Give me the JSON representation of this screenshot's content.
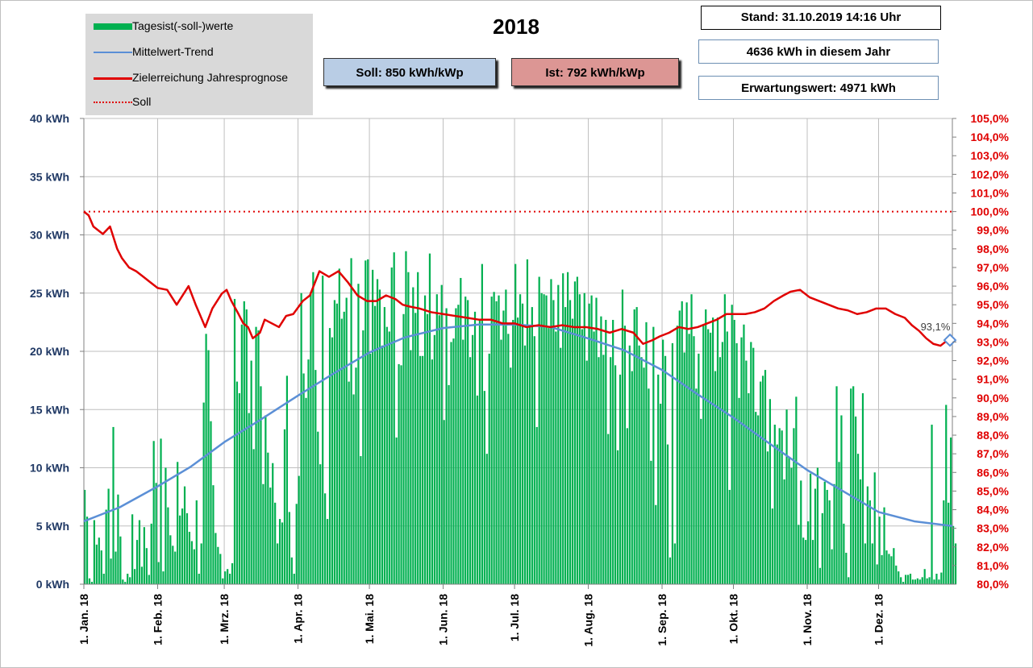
{
  "title": "2018",
  "info": {
    "stand": "Stand:  31.10.2019  14:16  Uhr",
    "jahr": "4636  kWh  in  diesem  Jahr",
    "erwartung": "Erwartungswert:  4971  kWh",
    "soll": "Soll:  850  kWh/kWp",
    "ist": "Ist:  792  kWh/kWp"
  },
  "legend": [
    {
      "label": "Tagesist(-soll-)werte",
      "color": "#00b050",
      "style": "bar"
    },
    {
      "label": "Mittelwert-Trend",
      "color": "#5b8fd6",
      "style": "line"
    },
    {
      "label": "Zielerreichung Jahresprognose",
      "color": "#e00000",
      "style": "line"
    },
    {
      "label": "Soll",
      "color": "#e00000",
      "style": "dotted"
    }
  ],
  "colors": {
    "bars": "#00b050",
    "trend": "#5b8fd6",
    "forecast": "#e00000",
    "soll": "#e00000",
    "left_axis": "#1f3864",
    "right_axis": "#e00000",
    "grid": "#bfbfbf"
  },
  "chart_data": {
    "type": "bar",
    "year": 2018,
    "y_left": {
      "range": [
        0,
        40
      ],
      "ticks": [
        0,
        5,
        10,
        15,
        20,
        25,
        30,
        35,
        40
      ],
      "tick_labels": [
        "0 kWh",
        "5 kWh",
        "10 kWh",
        "15 kWh",
        "20 kWh",
        "25 kWh",
        "30 kWh",
        "35 kWh",
        "40 kWh"
      ]
    },
    "y_right": {
      "range": [
        80,
        105
      ],
      "ticks": [
        80,
        81,
        82,
        83,
        84,
        85,
        86,
        87,
        88,
        89,
        90,
        91,
        92,
        93,
        94,
        95,
        96,
        97,
        98,
        99,
        100,
        101,
        102,
        103,
        104,
        105
      ],
      "tick_labels": [
        "80,0%",
        "81,0%",
        "82,0%",
        "83,0%",
        "84,0%",
        "85,0%",
        "86,0%",
        "87,0%",
        "88,0%",
        "89,0%",
        "90,0%",
        "91,0%",
        "92,0%",
        "93,0%",
        "94,0%",
        "95,0%",
        "96,0%",
        "97,0%",
        "98,0%",
        "99,0%",
        "100,0%",
        "101,0%",
        "102,0%",
        "103,0%",
        "104,0%",
        "105,0%"
      ]
    },
    "x_axis": {
      "range": [
        1,
        366
      ],
      "ticks": [
        1,
        32,
        60,
        91,
        121,
        152,
        182,
        213,
        244,
        274,
        305,
        335
      ],
      "tick_labels": [
        "1. Jan. 18",
        "1. Feb. 18",
        "1. Mrz. 18",
        "1. Apr. 18",
        "1. Mai. 18",
        "1. Jun. 18",
        "1. Jul. 18",
        "1. Aug. 18",
        "1. Sep. 18",
        "1. Okt. 18",
        "1. Nov. 18",
        "1. Dez. 18"
      ]
    },
    "grid": true,
    "legend_position": "top-left",
    "series": [
      {
        "name": "Tagesist(-soll-)werte",
        "type": "bar",
        "axis": "left",
        "x_start": 1,
        "x_step": 1,
        "values": [
          8.1,
          5.8,
          0.5,
          0.2,
          5.5,
          3.4,
          4.0,
          2.9,
          0.9,
          6.4,
          8.2,
          2.2,
          13.5,
          2.8,
          7.7,
          4.1,
          0.4,
          0.2,
          0.9,
          0.6,
          6.0,
          1.3,
          3.8,
          5.5,
          1.5,
          4.9,
          3.1,
          0.8,
          5.2,
          12.3,
          8.7,
          1.9,
          12.5,
          1.1,
          10.0,
          6.6,
          4.2,
          3.3,
          2.8,
          10.5,
          5.9,
          6.5,
          8.4,
          6.1,
          4.5,
          3.7,
          3.0,
          7.2,
          0.9,
          3.5,
          15.6,
          21.5,
          20.1,
          14.0,
          8.5,
          4.4,
          3.2,
          2.6,
          0.5,
          1.1,
          1.3,
          0.9,
          1.8,
          24.5,
          17.4,
          16.4,
          22.3,
          24.3,
          23.6,
          14.7,
          19.2,
          11.6,
          22.1,
          21.8,
          17.0,
          8.6,
          14.5,
          11.3,
          8.3,
          10.4,
          7.0,
          3.5,
          5.6,
          5.3,
          13.3,
          17.9,
          6.2,
          2.3,
          0.9,
          6.9,
          9.3,
          25.0,
          18.1,
          16.0,
          19.3,
          25.1,
          26.8,
          18.4,
          13.1,
          10.3,
          26.5,
          7.8,
          5.6,
          22.0,
          21.2,
          24.4,
          24.1,
          27.1,
          22.8,
          23.4,
          24.6,
          17.4,
          28.0,
          16.3,
          18.6,
          25.8,
          11.0,
          21.8,
          27.8,
          27.9,
          19.8,
          27.0,
          23.9,
          26.2,
          25.3,
          20.5,
          23.8,
          22.1,
          21.7,
          27.2,
          28.5,
          12.6,
          18.9,
          18.8,
          23.2,
          28.6,
          26.8,
          20.1,
          25.5,
          23.3,
          26.8,
          19.6,
          19.6,
          24.8,
          23.2,
          28.4,
          19.3,
          21.4,
          24.9,
          23.1,
          25.7,
          14.1,
          23.7,
          17.1,
          20.8,
          21.1,
          23.7,
          24.0,
          26.3,
          21.0,
          24.7,
          24.4,
          19.5,
          21.4,
          23.4,
          16.2,
          22.7,
          27.5,
          16.6,
          11.2,
          19.8,
          24.7,
          25.1,
          24.3,
          24.8,
          21.0,
          23.5,
          25.3,
          21.5,
          18.6,
          22.7,
          27.5,
          22.9,
          24.9,
          24.1,
          20.5,
          27.9,
          22.2,
          23.8,
          21.3,
          13.5,
          26.4,
          25.0,
          24.9,
          24.8,
          22.0,
          26.2,
          24.4,
          21.7,
          25.7,
          20.3,
          26.7,
          23.8,
          26.8,
          24.4,
          22.8,
          26.0,
          26.4,
          24.9,
          21.9,
          25.0,
          19.2,
          24.1,
          24.8,
          21.7,
          24.6,
          19.5,
          23.0,
          19.7,
          22.7,
          12.9,
          19.5,
          22.7,
          18.8,
          11.5,
          18.0,
          25.3,
          22.2,
          13.4,
          20.5,
          18.3,
          23.6,
          23.8,
          20.5,
          19.5,
          18.6,
          22.5,
          16.8,
          10.6,
          22.1,
          6.8,
          18.0,
          15.5,
          21.0,
          19.6,
          12.0,
          2.3,
          20.7,
          3.5,
          22.2,
          23.5,
          24.3,
          19.9,
          24.2,
          21.5,
          24.9,
          21.3,
          16.8,
          19.8,
          14.2,
          22.2,
          23.6,
          21.9,
          21.6,
          22.9,
          18.3,
          22.9,
          19.5,
          20.8,
          24.9,
          21.7,
          8.1,
          24.0,
          22.7,
          20.7,
          16.0,
          21.2,
          22.3,
          19.2,
          16.4,
          20.8,
          20.3,
          14.8,
          14.5,
          17.4,
          17.9,
          18.4,
          11.4,
          15.9,
          6.5,
          13.7,
          12.0,
          13.4,
          13.2,
          9.0,
          15.0,
          10.9,
          10.0,
          13.4,
          16.1,
          5.1,
          8.9,
          4.0,
          3.8,
          5.4,
          9.5,
          3.8,
          8.2,
          10.0,
          1.4,
          6.1,
          8.8,
          8.1,
          7.2,
          3.0,
          8.6,
          17.0,
          10.5,
          14.5,
          5.2,
          2.7,
          0.6,
          16.8,
          17.0,
          14.4,
          11.2,
          9.0,
          16.4,
          3.5,
          8.4,
          7.2,
          3.5,
          9.6,
          1.7,
          5.8,
          2.5,
          6.6,
          2.9,
          2.6,
          2.4,
          3.1,
          1.6,
          1.1,
          0.6,
          0.2,
          0.8,
          0.8,
          0.9,
          0.4,
          0.4,
          0.5,
          0.4,
          0.6,
          1.3,
          0.5,
          0.6,
          13.7,
          0.4,
          0.9,
          0.4,
          1.0,
          7.2,
          15.4,
          7.0,
          12.6,
          5.0,
          3.5
        ]
      },
      {
        "name": "Mittelwert-Trend",
        "type": "line",
        "axis": "left",
        "x": [
          1,
          16,
          32,
          46,
          60,
          75,
          91,
          106,
          121,
          136,
          152,
          167,
          182,
          197,
          213,
          228,
          244,
          259,
          274,
          289,
          305,
          320,
          335,
          350,
          366
        ],
        "values": [
          5.4,
          6.6,
          8.4,
          10.1,
          12.2,
          14.1,
          16.2,
          18.1,
          19.9,
          21.2,
          22.0,
          22.3,
          22.3,
          22.1,
          21.1,
          20.1,
          18.4,
          16.3,
          14.3,
          12.1,
          9.8,
          8.0,
          6.2,
          5.4,
          5.0
        ]
      },
      {
        "name": "Zielerreichung Jahresprognose",
        "type": "line",
        "axis": "right",
        "x": [
          1,
          3,
          5,
          9,
          12,
          15,
          17,
          20,
          23,
          26,
          29,
          32,
          36,
          40,
          45,
          48,
          52,
          55,
          57,
          59,
          61,
          63,
          66,
          68,
          70,
          72,
          75,
          77,
          80,
          83,
          86,
          89,
          93,
          96,
          100,
          104,
          108,
          112,
          116,
          120,
          124,
          128,
          132,
          135,
          138,
          142,
          147,
          152,
          157,
          162,
          167,
          172,
          177,
          182,
          187,
          192,
          197,
          202,
          207,
          212,
          217,
          222,
          227,
          232,
          236,
          240,
          243,
          247,
          251,
          255,
          259,
          263,
          267,
          271,
          275,
          279,
          283,
          287,
          291,
          295,
          298,
          302,
          306,
          310,
          314,
          318,
          322,
          326,
          330,
          334,
          338,
          342,
          346,
          349,
          352,
          355,
          358,
          361,
          363,
          365
        ],
        "values": [
          100.0,
          99.8,
          99.2,
          98.8,
          99.2,
          98.0,
          97.5,
          97.0,
          96.8,
          96.5,
          96.2,
          95.9,
          95.8,
          95.0,
          96.0,
          95.0,
          93.8,
          94.8,
          95.2,
          95.6,
          95.8,
          95.2,
          94.5,
          94.0,
          93.8,
          93.2,
          93.5,
          94.2,
          94.0,
          93.8,
          94.4,
          94.5,
          95.2,
          95.5,
          96.8,
          96.5,
          96.8,
          96.2,
          95.5,
          95.2,
          95.2,
          95.5,
          95.3,
          95.0,
          94.9,
          94.8,
          94.6,
          94.5,
          94.4,
          94.3,
          94.2,
          94.2,
          94.0,
          94.0,
          93.8,
          93.9,
          93.8,
          93.9,
          93.8,
          93.8,
          93.7,
          93.5,
          93.7,
          93.5,
          92.9,
          93.1,
          93.3,
          93.5,
          93.8,
          93.7,
          93.8,
          94.0,
          94.2,
          94.5,
          94.5,
          94.5,
          94.6,
          94.8,
          95.2,
          95.5,
          95.7,
          95.8,
          95.4,
          95.2,
          95.0,
          94.8,
          94.7,
          94.5,
          94.6,
          94.8,
          94.8,
          94.5,
          94.3,
          93.9,
          93.6,
          93.2,
          92.9,
          92.8,
          93.0,
          93.2
        ]
      },
      {
        "name": "Soll",
        "type": "line",
        "axis": "right",
        "x": [
          1,
          366
        ],
        "values": [
          100.0,
          100.0
        ]
      }
    ],
    "end_marker": {
      "x": 366,
      "value": 93.1,
      "label": "93,1%"
    }
  }
}
